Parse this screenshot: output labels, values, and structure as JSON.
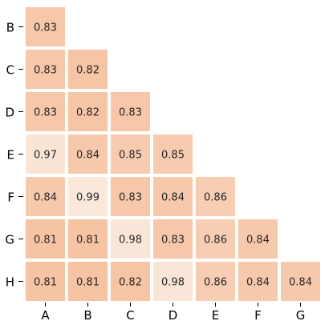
{
  "chart_data": {
    "type": "heatmap",
    "title": "",
    "xlabel": "",
    "ylabel": "",
    "x_categories": [
      "A",
      "B",
      "C",
      "D",
      "E",
      "F",
      "G"
    ],
    "y_categories": [
      "B",
      "C",
      "D",
      "E",
      "F",
      "G",
      "H"
    ],
    "layout": "lower-triangular",
    "grid": false,
    "colorbar": false,
    "colors": {
      "low": "#f6c3a3",
      "high": "#fae8db",
      "text": "#262626"
    },
    "value_range": [
      0.81,
      0.99
    ],
    "rows": [
      {
        "label": "B",
        "values": [
          "0.83"
        ]
      },
      {
        "label": "C",
        "values": [
          "0.83",
          "0.82"
        ]
      },
      {
        "label": "D",
        "values": [
          "0.83",
          "0.82",
          "0.83"
        ]
      },
      {
        "label": "E",
        "values": [
          "0.97",
          "0.84",
          "0.85",
          "0.85"
        ]
      },
      {
        "label": "F",
        "values": [
          "0.84",
          "0.99",
          "0.83",
          "0.84",
          "0.86"
        ]
      },
      {
        "label": "G",
        "values": [
          "0.81",
          "0.81",
          "0.98",
          "0.83",
          "0.86",
          "0.84"
        ]
      },
      {
        "label": "H",
        "values": [
          "0.81",
          "0.81",
          "0.82",
          "0.98",
          "0.86",
          "0.84",
          "0.84"
        ]
      }
    ]
  }
}
